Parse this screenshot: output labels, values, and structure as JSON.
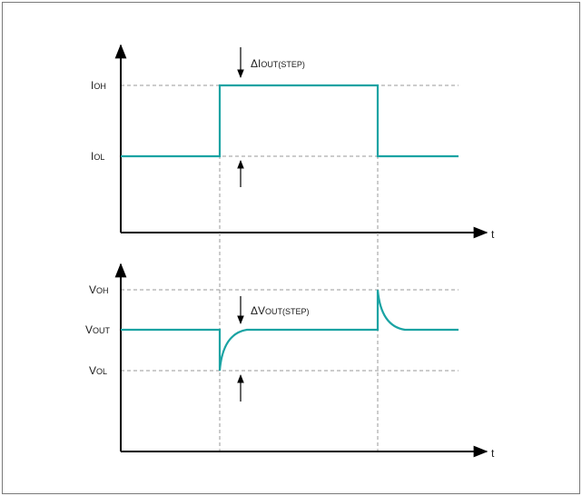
{
  "figure": {
    "current_panel": {
      "level_labels": [
        {
          "main": "I",
          "sub": "OH"
        },
        {
          "main": "I",
          "sub": "OL"
        }
      ],
      "step_label": {
        "main": "ΔI",
        "sub": "OUT(STEP)"
      },
      "time_axis_label": "t"
    },
    "voltage_panel": {
      "level_labels": [
        {
          "main": "V",
          "sub": "OH"
        },
        {
          "main": "V",
          "sub": "OUT"
        },
        {
          "main": "V",
          "sub": "OL"
        }
      ],
      "step_label": {
        "main": "ΔV",
        "sub": "OUT(STEP)"
      },
      "time_axis_label": "t"
    }
  },
  "colors": {
    "waveform": "#1aa3a3",
    "axis": "#000000",
    "guide": "#9a9a9a",
    "frame": "#7a7a7a"
  }
}
